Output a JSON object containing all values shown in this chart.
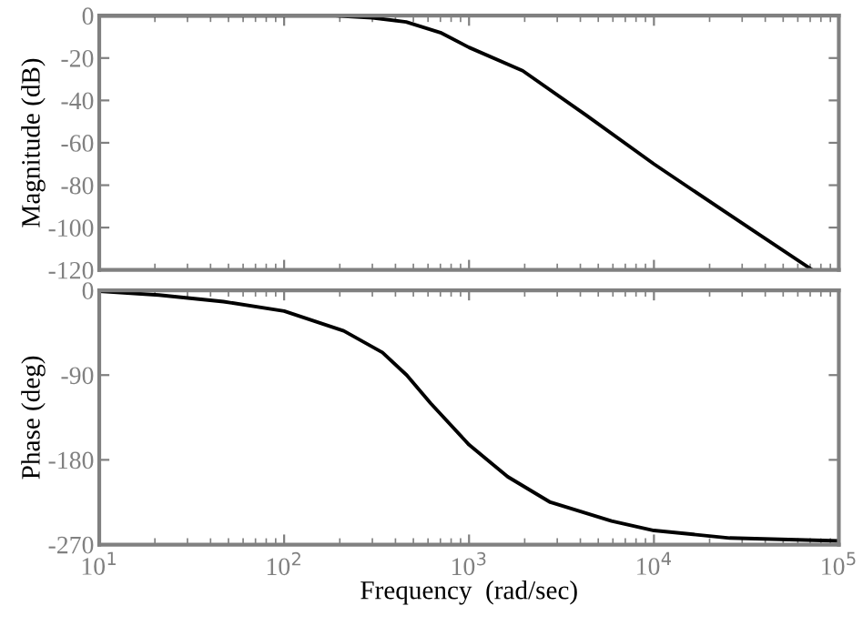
{
  "chart_data": [
    {
      "type": "line",
      "ylabel": "Magnitude (dB)",
      "log": "x",
      "xlim": [
        10,
        100000
      ],
      "xticks": [
        {
          "value": 10,
          "label": null
        },
        {
          "value": 100,
          "label": null
        },
        {
          "value": 1000,
          "label": null
        },
        {
          "value": 10000,
          "label": null
        },
        {
          "value": 100000,
          "label": null
        }
      ],
      "ylim": [
        -120,
        0
      ],
      "yticks": [
        {
          "value": 0,
          "label": "0"
        },
        {
          "value": -20,
          "label": "-20"
        },
        {
          "value": -40,
          "label": "-40"
        },
        {
          "value": -60,
          "label": "-60"
        },
        {
          "value": -80,
          "label": "-80"
        },
        {
          "value": -100,
          "label": "-100"
        },
        {
          "value": -120,
          "label": "-120"
        }
      ],
      "tick_labels": "y",
      "grid": false,
      "legend": false,
      "series": [
        {
          "color": "#000000",
          "x": [
            10,
            100,
            190,
            300,
            457,
            700,
            1000,
            1950,
            4300,
            10000,
            23700,
            72000
          ],
          "values": [
            0,
            0,
            0,
            -1,
            -3,
            -8,
            -15,
            -26,
            -47,
            -70,
            -92,
            -120
          ]
        }
      ]
    },
    {
      "type": "line",
      "xlabel": "Frequency  (rad/sec)",
      "ylabel": "Phase (deg)",
      "log": "x",
      "xlim": [
        10,
        100000
      ],
      "xticks": [
        {
          "value": 10,
          "label": "10$^{1}$"
        },
        {
          "value": 100,
          "label": "10$^{2}$"
        },
        {
          "value": 1000,
          "label": "10$^{3}$"
        },
        {
          "value": 10000,
          "label": "10$^{4}$"
        },
        {
          "value": 100000,
          "label": "10$^{5}$"
        }
      ],
      "ylim": [
        -270,
        0
      ],
      "yticks": [
        {
          "value": 0,
          "label": "0"
        },
        {
          "value": -90,
          "label": "-90"
        },
        {
          "value": -180,
          "label": "-180"
        },
        {
          "value": -270,
          "label": "-270"
        }
      ],
      "grid": false,
      "legend": false,
      "series": [
        {
          "color": "#000000",
          "x": [
            10,
            21,
            47,
            100,
            210,
            340,
            460,
            620,
            1000,
            1620,
            2750,
            5900,
            10000,
            25700,
            100000
          ],
          "values": [
            -1,
            -5,
            -12,
            -22,
            -43,
            -66,
            -90,
            -120,
            -164,
            -198,
            -225,
            -245,
            -255,
            -263,
            -266
          ]
        }
      ]
    }
  ]
}
